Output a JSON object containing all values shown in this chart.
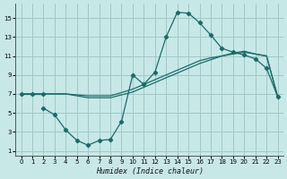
{
  "bg_color": "#c8e8e8",
  "grid_color": "#a0c8c8",
  "line_color": "#1a6b6b",
  "xlabel": "Humidex (Indice chaleur)",
  "xlim": [
    -0.5,
    23.5
  ],
  "ylim": [
    0.5,
    16.5
  ],
  "xticks": [
    0,
    1,
    2,
    3,
    4,
    5,
    6,
    7,
    8,
    9,
    10,
    11,
    12,
    13,
    14,
    15,
    16,
    17,
    18,
    19,
    20,
    21,
    22,
    23
  ],
  "yticks": [
    1,
    3,
    5,
    7,
    9,
    11,
    13,
    15
  ],
  "line1_x": [
    0,
    1,
    2
  ],
  "line1_y": [
    7.0,
    7.0,
    7.0
  ],
  "line2_x": [
    2,
    3,
    4,
    5,
    6,
    7,
    8,
    9,
    10,
    11,
    12,
    13,
    14,
    15,
    16,
    17,
    18,
    19,
    20,
    21,
    22,
    23
  ],
  "line2_y": [
    5.5,
    4.8,
    3.2,
    2.1,
    1.6,
    2.1,
    2.2,
    4.1,
    9.0,
    8.0,
    9.3,
    13.0,
    15.6,
    15.5,
    14.5,
    13.2,
    11.8,
    11.4,
    11.1,
    10.7,
    9.7,
    6.7
  ],
  "line3_x": [
    0,
    2,
    4,
    6,
    8,
    10,
    11,
    12,
    13,
    14,
    15,
    16,
    17,
    18,
    19,
    20,
    21,
    22,
    23
  ],
  "line3_y": [
    7.0,
    7.0,
    7.0,
    6.8,
    6.8,
    7.5,
    8.0,
    8.5,
    9.0,
    9.5,
    10.0,
    10.5,
    10.8,
    11.0,
    11.3,
    11.5,
    11.2,
    11.0,
    6.7
  ],
  "line4_x": [
    0,
    4,
    6,
    8,
    10,
    11,
    12,
    13,
    14,
    15,
    16,
    17,
    18,
    19,
    20,
    21,
    22,
    23
  ],
  "line4_y": [
    7.0,
    7.0,
    6.6,
    6.6,
    7.2,
    7.7,
    8.2,
    8.7,
    9.2,
    9.7,
    10.2,
    10.6,
    11.0,
    11.2,
    11.4,
    11.2,
    11.0,
    6.7
  ]
}
